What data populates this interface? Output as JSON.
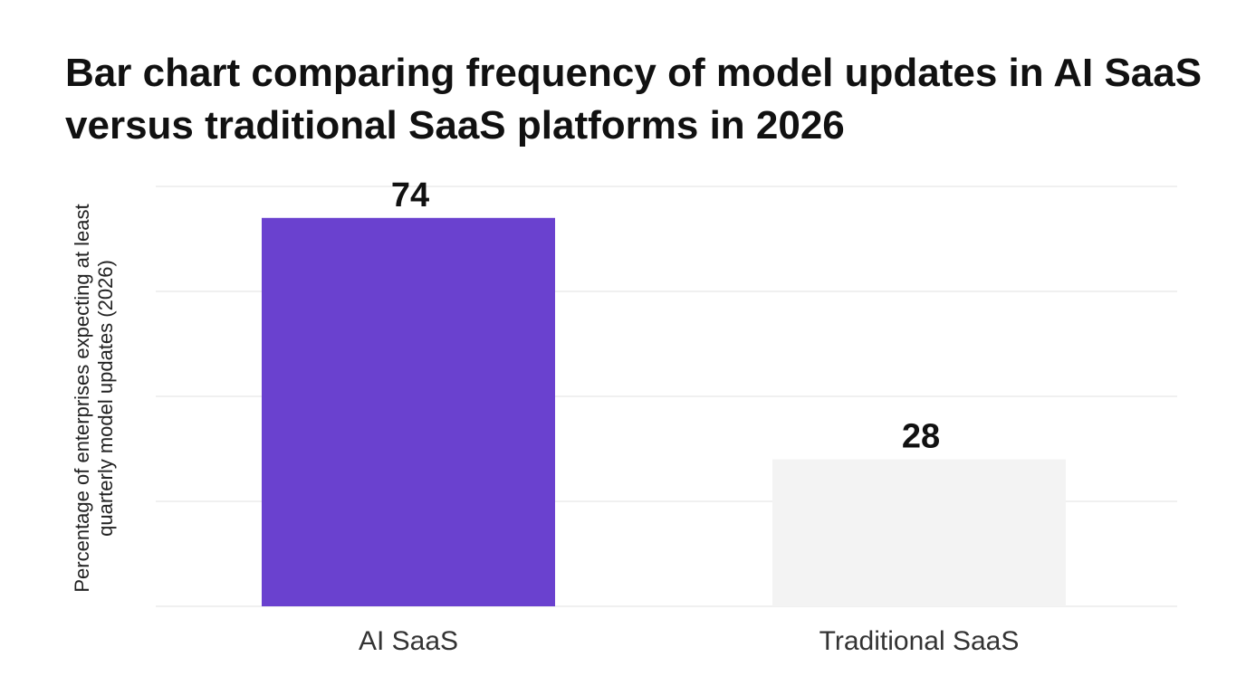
{
  "chart_data": {
    "type": "bar",
    "title": "Bar chart comparing frequency of model updates in AI SaaS versus traditional SaaS platforms in 2026",
    "ylabel": "Percentage of enterprises expecting at least quarterly model updates (2026)",
    "xlabel": "",
    "categories": [
      "AI SaaS",
      "Traditional SaaS"
    ],
    "values": [
      74,
      28
    ],
    "data_labels": [
      "74",
      "28"
    ],
    "ylim": [
      0,
      80
    ],
    "grid": true,
    "bar_colors": [
      "#6a41cf",
      "#f3f3f3"
    ],
    "gridline_color": "#e6e6e6"
  }
}
